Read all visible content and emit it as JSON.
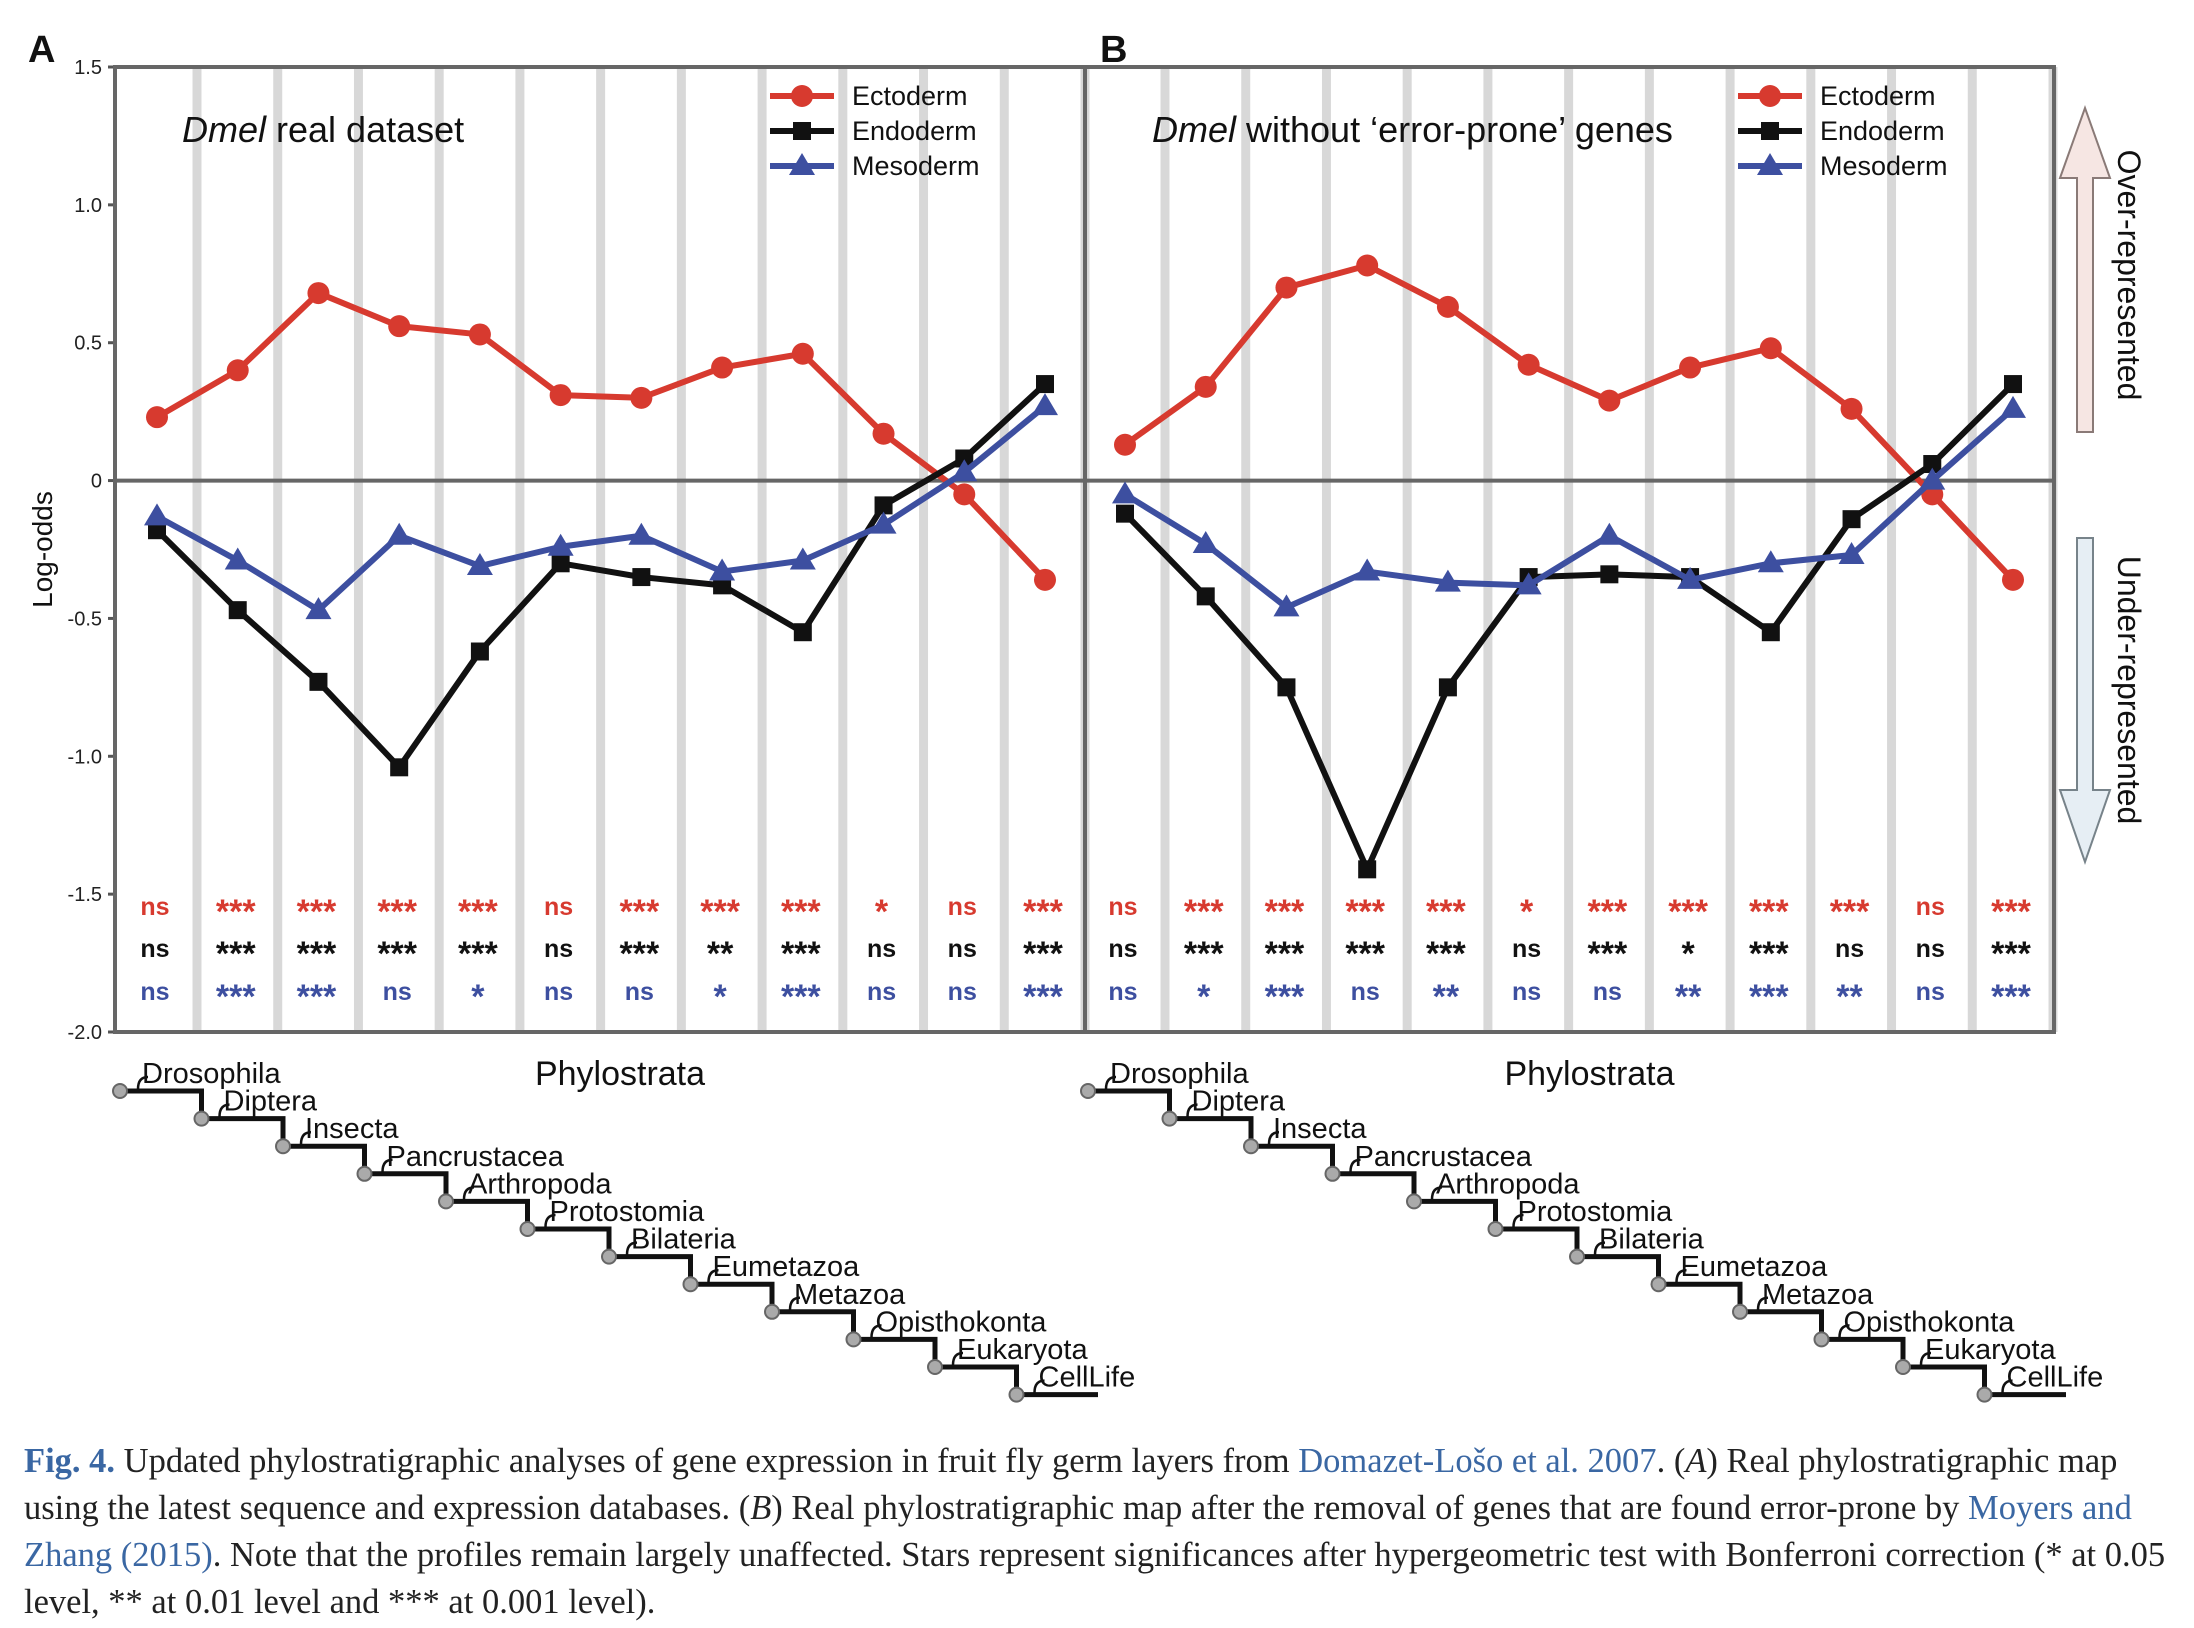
{
  "figure": {
    "y_axis_label": "Log-odds",
    "yticks": [
      "1.5",
      "1.0",
      "0.5",
      "0",
      "-0.5",
      "-1.0",
      "-1.5",
      "-2.0"
    ],
    "phylostrata_label": "Phylostrata",
    "side_labels": {
      "over": "Over-represented",
      "under": "Under-represented"
    },
    "legend": [
      "Ectoderm",
      "Endoderm",
      "Mesoderm"
    ],
    "colors": {
      "Ectoderm": "#d73a2f",
      "Endoderm": "#111111",
      "Mesoderm": "#3d4fa0"
    }
  },
  "chart_data": [
    {
      "type": "line",
      "panel_label": "A",
      "title_italic": "Dmel",
      "title_rest": " real dataset",
      "ylabel": "Log-odds",
      "xlabel": "Phylostrata",
      "ylim": [
        -2.0,
        1.5
      ],
      "grid": "vertical",
      "legend_position": "top-right",
      "categories": [
        "Drosophila",
        "Diptera",
        "Insecta",
        "Pancrustacea",
        "Arthropoda",
        "Protostomia",
        "Bilateria",
        "Eumetazoa",
        "Metazoa",
        "Opisthokonta",
        "Eukaryota",
        "CellLife"
      ],
      "series": [
        {
          "name": "Ectoderm",
          "marker": "circle",
          "values": [
            0.23,
            0.4,
            0.68,
            0.56,
            0.53,
            0.31,
            0.3,
            0.41,
            0.46,
            0.17,
            -0.05,
            -0.36
          ]
        },
        {
          "name": "Endoderm",
          "marker": "square",
          "values": [
            -0.18,
            -0.47,
            -0.73,
            -1.04,
            -0.62,
            -0.3,
            -0.35,
            -0.38,
            -0.55,
            -0.09,
            0.08,
            0.35
          ]
        },
        {
          "name": "Mesoderm",
          "marker": "triangle",
          "values": [
            -0.13,
            -0.29,
            -0.47,
            -0.2,
            -0.31,
            -0.24,
            -0.2,
            -0.33,
            -0.29,
            -0.16,
            0.03,
            0.27
          ]
        }
      ],
      "significance": {
        "Ectoderm": [
          "ns",
          "***",
          "***",
          "***",
          "***",
          "ns",
          "***",
          "***",
          "***",
          "*",
          "ns",
          "***"
        ],
        "Endoderm": [
          "ns",
          "***",
          "***",
          "***",
          "***",
          "ns",
          "***",
          "**",
          "***",
          "ns",
          "ns",
          "***"
        ],
        "Mesoderm": [
          "ns",
          "***",
          "***",
          "ns",
          "*",
          "ns",
          "ns",
          "*",
          "***",
          "ns",
          "ns",
          "***"
        ]
      }
    },
    {
      "type": "line",
      "panel_label": "B",
      "title_italic": "Dmel",
      "title_rest": " without ‘error-prone’ genes",
      "ylabel": "Log-odds",
      "xlabel": "Phylostrata",
      "ylim": [
        -2.0,
        1.5
      ],
      "grid": "vertical",
      "legend_position": "top-right",
      "categories": [
        "Drosophila",
        "Diptera",
        "Insecta",
        "Pancrustacea",
        "Arthropoda",
        "Protostomia",
        "Bilateria",
        "Eumetazoa",
        "Metazoa",
        "Opisthokonta",
        "Eukaryota",
        "CellLife"
      ],
      "series": [
        {
          "name": "Ectoderm",
          "marker": "circle",
          "values": [
            0.13,
            0.34,
            0.7,
            0.78,
            0.63,
            0.42,
            0.29,
            0.41,
            0.48,
            0.26,
            -0.05,
            -0.36
          ]
        },
        {
          "name": "Endoderm",
          "marker": "square",
          "values": [
            -0.12,
            -0.42,
            -0.75,
            -1.41,
            -0.75,
            -0.35,
            -0.34,
            -0.35,
            -0.55,
            -0.14,
            0.06,
            0.35
          ]
        },
        {
          "name": "Mesoderm",
          "marker": "triangle",
          "values": [
            -0.05,
            -0.23,
            -0.46,
            -0.33,
            -0.37,
            -0.38,
            -0.2,
            -0.36,
            -0.3,
            -0.27,
            0.0,
            0.26
          ]
        }
      ],
      "significance": {
        "Ectoderm": [
          "ns",
          "***",
          "***",
          "***",
          "***",
          "*",
          "***",
          "***",
          "***",
          "***",
          "ns",
          "***"
        ],
        "Endoderm": [
          "ns",
          "***",
          "***",
          "***",
          "***",
          "ns",
          "***",
          "*",
          "***",
          "ns",
          "ns",
          "***"
        ],
        "Mesoderm": [
          "ns",
          "*",
          "***",
          "ns",
          "**",
          "ns",
          "ns",
          "**",
          "***",
          "**",
          "ns",
          "***"
        ]
      }
    }
  ],
  "caption": {
    "fig_label": "Fig. 4.",
    "text_1": " Updated phylostratigraphic analyses of gene expression in fruit fly germ layers from ",
    "ref_1": "Domazet-Lošo et al. 2007",
    "text_2": ". (",
    "a_label": "A",
    "text_3": ") Real phylostratigraphic map using the latest sequence and expression databases. (",
    "b_label": "B",
    "text_4": ") Real phylostratigraphic map after the removal of genes that are found error-prone by ",
    "ref_2": "Moyers and Zhang (2015)",
    "text_5": ". Note that the profiles remain largely unaffected. Stars represent significances after hypergeometric test with Bonferroni correction (* at 0.05 level, ** at 0.01 level and *** at 0.001 level)."
  }
}
